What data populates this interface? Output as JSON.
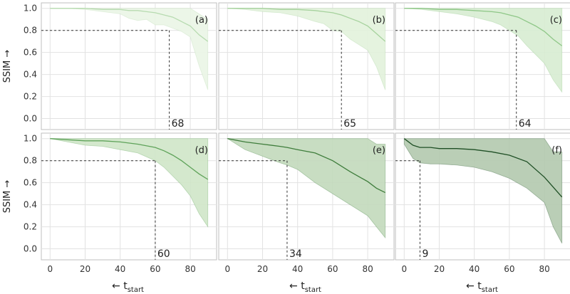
{
  "chart_data": {
    "type": "line",
    "shared": {
      "xlim": [
        -5,
        95
      ],
      "ylim": [
        -0.1,
        1.05
      ],
      "x_ticks": [
        0,
        20,
        40,
        60,
        80
      ],
      "y_ticks": [
        0.0,
        0.2,
        0.4,
        0.6,
        0.8,
        1.0
      ],
      "y_tick_labels": [
        "0.0",
        "0.2",
        "0.4",
        "0.6",
        "0.8",
        "1.0"
      ],
      "ylabel": "SSIM",
      "ylabel_arrow": "→",
      "xlabel_arrow": "←",
      "xlabel_main": "t",
      "xlabel_sub": "start",
      "threshold": 0.8,
      "grid": true
    },
    "panels": [
      {
        "label": "(a)",
        "threshold_x_label": "68",
        "threshold_x": 68,
        "line_color": "#b7dbb0",
        "fill_color": "#eaf5e5",
        "x": [
          0,
          10,
          20,
          30,
          40,
          45,
          50,
          55,
          60,
          65,
          70,
          75,
          80,
          85,
          90
        ],
        "mean": [
          1.0,
          1.0,
          1.0,
          0.99,
          0.99,
          0.98,
          0.98,
          0.97,
          0.96,
          0.94,
          0.92,
          0.88,
          0.84,
          0.76,
          0.7
        ],
        "upper": [
          1.0,
          1.0,
          1.0,
          1.0,
          1.0,
          1.0,
          1.0,
          1.0,
          1.0,
          1.0,
          1.0,
          1.0,
          1.0,
          0.95,
          0.9
        ],
        "lower": [
          1.0,
          1.0,
          0.99,
          0.97,
          0.95,
          0.91,
          0.89,
          0.9,
          0.85,
          0.85,
          0.82,
          0.79,
          0.74,
          0.48,
          0.26
        ]
      },
      {
        "label": "(b)",
        "threshold_x_label": "65",
        "threshold_x": 65,
        "line_color": "#a6d29d",
        "fill_color": "#e2f2dc",
        "x": [
          0,
          10,
          20,
          30,
          40,
          50,
          55,
          60,
          65,
          70,
          75,
          80,
          85,
          90
        ],
        "mean": [
          1.0,
          1.0,
          1.0,
          0.99,
          0.99,
          0.98,
          0.97,
          0.96,
          0.94,
          0.91,
          0.88,
          0.84,
          0.77,
          0.7
        ],
        "upper": [
          1.0,
          1.0,
          1.0,
          1.0,
          1.0,
          1.0,
          1.0,
          1.0,
          1.0,
          1.0,
          1.0,
          1.0,
          1.0,
          1.0
        ],
        "lower": [
          1.0,
          0.99,
          0.97,
          0.96,
          0.93,
          0.88,
          0.86,
          0.8,
          0.79,
          0.72,
          0.67,
          0.62,
          0.47,
          0.26
        ]
      },
      {
        "label": "(c)",
        "threshold_x_label": "64",
        "threshold_x": 64,
        "line_color": "#8fc788",
        "fill_color": "#d7ecd1",
        "x": [
          0,
          10,
          20,
          30,
          40,
          50,
          55,
          60,
          65,
          70,
          75,
          80,
          85,
          90
        ],
        "mean": [
          1.0,
          1.0,
          0.99,
          0.99,
          0.98,
          0.97,
          0.96,
          0.94,
          0.92,
          0.88,
          0.84,
          0.79,
          0.72,
          0.66
        ],
        "upper": [
          1.0,
          1.0,
          1.0,
          1.0,
          1.0,
          1.0,
          1.0,
          1.0,
          1.0,
          1.0,
          1.0,
          1.0,
          1.0,
          1.0
        ],
        "lower": [
          1.0,
          0.99,
          0.97,
          0.95,
          0.92,
          0.88,
          0.85,
          0.8,
          0.75,
          0.66,
          0.58,
          0.5,
          0.35,
          0.24
        ]
      },
      {
        "label": "(d)",
        "threshold_x_label": "60",
        "threshold_x": 60,
        "line_color": "#5fa35a",
        "fill_color": "#cfe6c8",
        "x": [
          0,
          10,
          20,
          30,
          40,
          50,
          60,
          65,
          70,
          75,
          80,
          85,
          90
        ],
        "mean": [
          1.0,
          0.99,
          0.98,
          0.98,
          0.97,
          0.95,
          0.92,
          0.89,
          0.85,
          0.8,
          0.74,
          0.68,
          0.63
        ],
        "upper": [
          1.0,
          1.0,
          1.0,
          1.0,
          1.0,
          1.0,
          1.0,
          1.0,
          1.0,
          1.0,
          1.0,
          1.0,
          1.0
        ],
        "lower": [
          1.0,
          0.97,
          0.94,
          0.93,
          0.9,
          0.87,
          0.8,
          0.74,
          0.66,
          0.58,
          0.48,
          0.32,
          0.2
        ]
      },
      {
        "label": "(e)",
        "threshold_x_label": "34",
        "threshold_x": 34,
        "line_color": "#3f7d3c",
        "fill_color": "#c2d9bb",
        "x": [
          0,
          10,
          20,
          30,
          34,
          40,
          50,
          60,
          70,
          80,
          85,
          90
        ],
        "mean": [
          1.0,
          0.97,
          0.95,
          0.93,
          0.92,
          0.9,
          0.87,
          0.8,
          0.7,
          0.61,
          0.55,
          0.51
        ],
        "upper": [
          1.0,
          1.0,
          1.0,
          1.0,
          1.0,
          1.0,
          1.0,
          1.0,
          1.0,
          1.0,
          0.95,
          0.95
        ],
        "lower": [
          1.0,
          0.9,
          0.84,
          0.78,
          0.76,
          0.72,
          0.6,
          0.5,
          0.4,
          0.3,
          0.2,
          0.1
        ]
      },
      {
        "label": "(f)",
        "threshold_x_label": "9",
        "threshold_x": 9,
        "line_color": "#1f4f25",
        "fill_color": "#b3c9ae",
        "x": [
          0,
          5,
          9,
          15,
          20,
          30,
          40,
          50,
          60,
          70,
          80,
          85,
          90
        ],
        "mean": [
          1.0,
          0.94,
          0.92,
          0.92,
          0.91,
          0.91,
          0.9,
          0.88,
          0.85,
          0.79,
          0.65,
          0.56,
          0.47
        ],
        "upper": [
          1.0,
          1.0,
          1.0,
          1.0,
          1.0,
          1.0,
          1.0,
          1.0,
          1.0,
          1.0,
          1.0,
          0.88,
          0.88
        ],
        "lower": [
          0.95,
          0.82,
          0.78,
          0.77,
          0.77,
          0.76,
          0.74,
          0.7,
          0.64,
          0.55,
          0.42,
          0.2,
          0.05
        ]
      }
    ]
  }
}
